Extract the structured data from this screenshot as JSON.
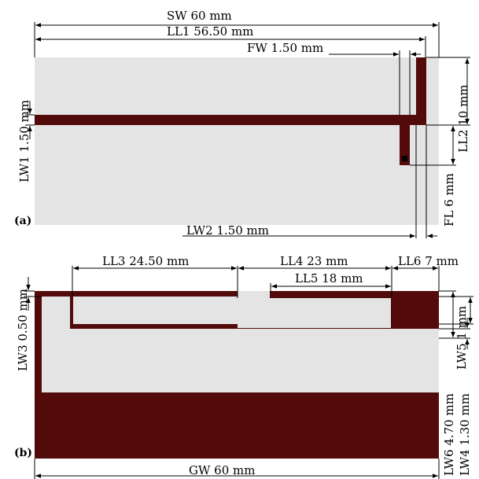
{
  "colors": {
    "substrate": "#e4e4e4",
    "metal": "#520a0a",
    "dimension_line": "#000000",
    "background": "#ffffff"
  },
  "panel_a": {
    "label": "(a)",
    "dimensions": {
      "SW": "SW 60 mm",
      "LL1": "LL1 56.50 mm",
      "FW": "FW 1.50 mm",
      "LW1": "LW1 1.50 mm",
      "LL2": "LL2 10 mm",
      "FL": "FL 6 mm",
      "LW2": "LW2 1.50 mm"
    }
  },
  "panel_b": {
    "label": "(b)",
    "dimensions": {
      "LL3": "LL3 24.50 mm",
      "LL4": "LL4 23 mm",
      "LL5": "LL5 18 mm",
      "LL6": "LL6 7 mm",
      "LW3": "LW3 0.50 mm",
      "LW5": "LW5 1 mm",
      "LW6": "LW6 4.70 mm",
      "LW4": "LW4 1.30 mm",
      "GW": "GW 60 mm"
    }
  }
}
